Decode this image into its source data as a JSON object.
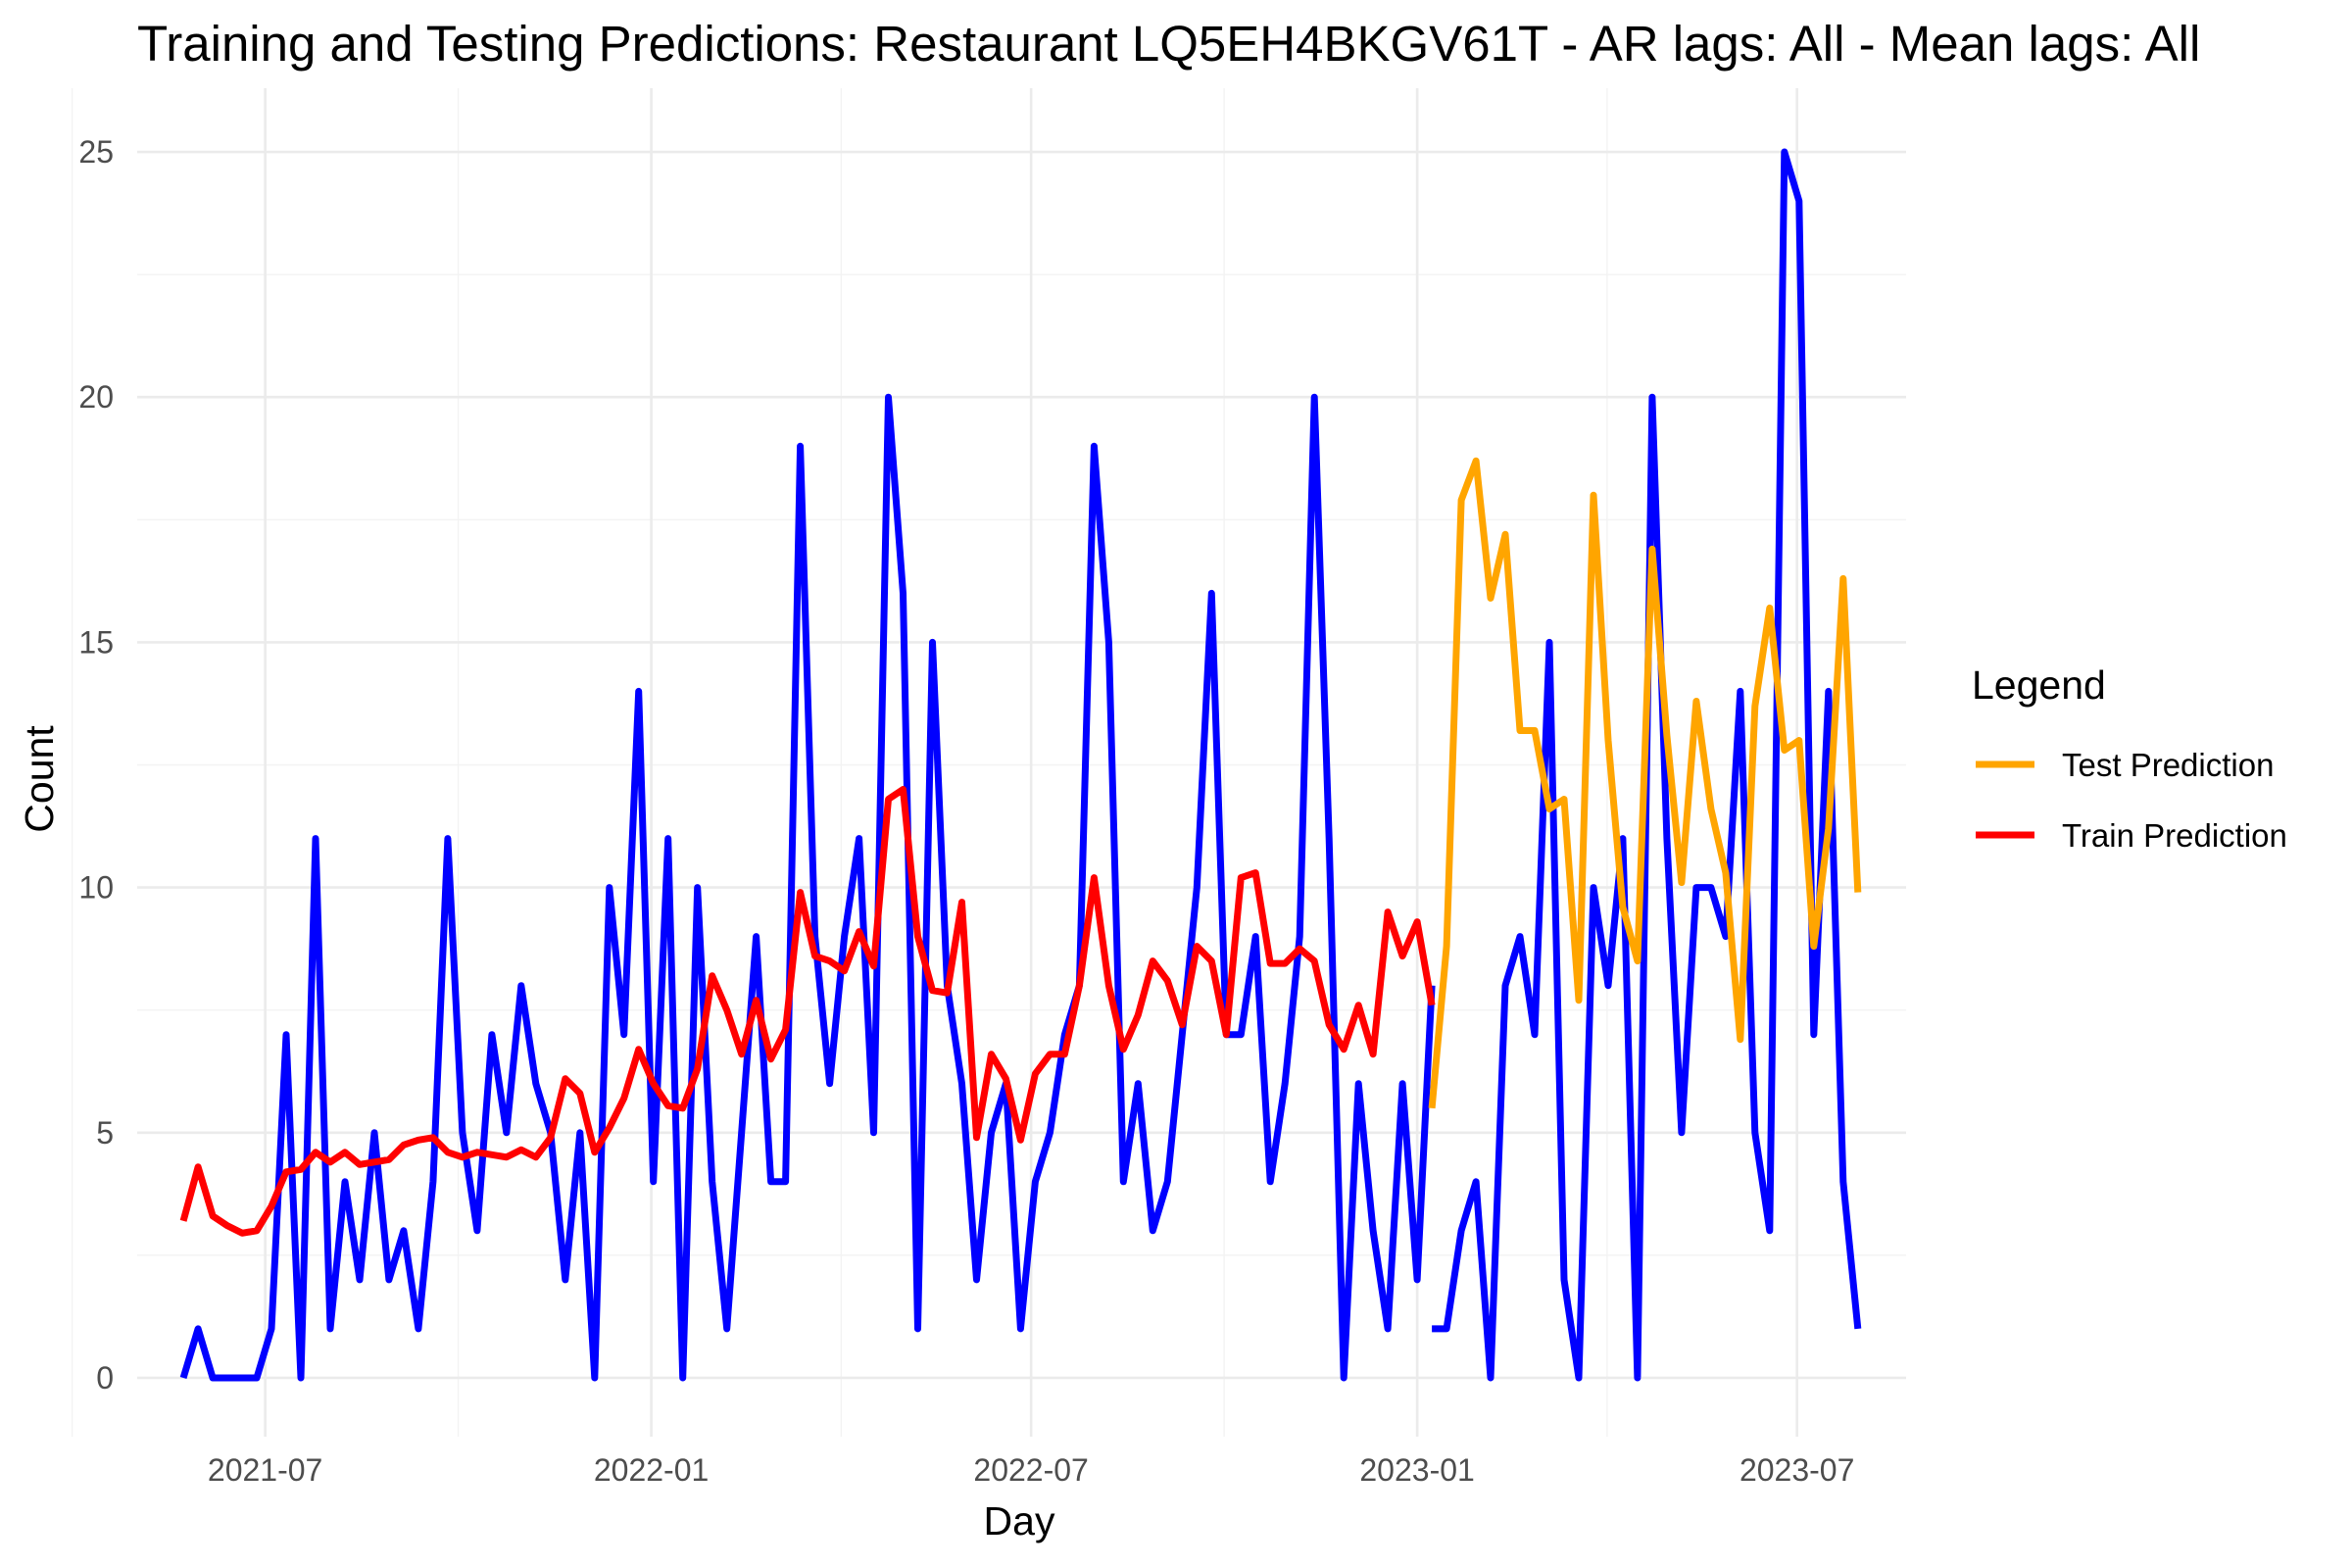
{
  "chart_data": {
    "type": "line",
    "title": "Training and Testing Predictions: Restaurant LQ5EH4BKGV61T - AR lags: All - Mean lags: All",
    "xlabel": "Day",
    "ylabel": "Count",
    "xlim": [
      "2021-05-01",
      "2023-08-22"
    ],
    "ylim": [
      -1.2,
      26.3
    ],
    "x_ticks": [
      "2021-07",
      "2022-01",
      "2022-07",
      "2023-01",
      "2023-07"
    ],
    "y_ticks": [
      0,
      5,
      10,
      15,
      20,
      25
    ],
    "grid": true,
    "legend": {
      "title": "Legend",
      "position": "right",
      "entries": [
        {
          "label": "Test Prediction",
          "color": "#FFA500"
        },
        {
          "label": "Train Prediction",
          "color": "#FF0000"
        }
      ]
    },
    "series": [
      {
        "name": "",
        "color": "#0000FF",
        "points": [
          [
            "2021-05-23",
            0
          ],
          [
            "2021-05-30",
            1
          ],
          [
            "2021-06-06",
            0
          ],
          [
            "2021-06-13",
            0
          ],
          [
            "2021-06-20",
            0
          ],
          [
            "2021-06-27",
            0
          ],
          [
            "2021-07-04",
            1
          ],
          [
            "2021-07-11",
            7
          ],
          [
            "2021-07-18",
            0
          ],
          [
            "2021-07-25",
            11
          ],
          [
            "2021-08-01",
            1
          ],
          [
            "2021-08-08",
            4
          ],
          [
            "2021-08-15",
            2
          ],
          [
            "2021-08-22",
            5
          ],
          [
            "2021-08-29",
            2
          ],
          [
            "2021-09-05",
            3
          ],
          [
            "2021-09-12",
            1
          ],
          [
            "2021-09-19",
            4
          ],
          [
            "2021-09-26",
            11
          ],
          [
            "2021-10-03",
            5
          ],
          [
            "2021-10-10",
            3
          ],
          [
            "2021-10-17",
            7
          ],
          [
            "2021-10-24",
            5
          ],
          [
            "2021-10-31",
            8
          ],
          [
            "2021-11-07",
            6
          ],
          [
            "2021-11-14",
            5
          ],
          [
            "2021-11-21",
            2
          ],
          [
            "2021-11-28",
            5
          ],
          [
            "2021-12-05",
            0
          ],
          [
            "2021-12-12",
            10
          ],
          [
            "2021-12-19",
            7
          ],
          [
            "2021-12-26",
            14
          ],
          [
            "2022-01-02",
            4
          ],
          [
            "2022-01-09",
            11
          ],
          [
            "2022-01-16",
            0
          ],
          [
            "2022-01-23",
            10
          ],
          [
            "2022-01-30",
            4
          ],
          [
            "2022-02-06",
            1
          ],
          [
            "2022-02-13",
            5
          ],
          [
            "2022-02-20",
            9
          ],
          [
            "2022-02-27",
            4
          ],
          [
            "2022-03-06",
            4
          ],
          [
            "2022-03-13",
            19
          ],
          [
            "2022-03-20",
            9
          ],
          [
            "2022-03-27",
            6
          ],
          [
            "2022-04-03",
            9
          ],
          [
            "2022-04-10",
            11
          ],
          [
            "2022-04-17",
            5
          ],
          [
            "2022-04-24",
            20
          ],
          [
            "2022-05-01",
            16
          ],
          [
            "2022-05-08",
            1
          ],
          [
            "2022-05-15",
            15
          ],
          [
            "2022-05-22",
            8
          ],
          [
            "2022-05-29",
            6
          ],
          [
            "2022-06-05",
            2
          ],
          [
            "2022-06-12",
            5
          ],
          [
            "2022-06-19",
            6
          ],
          [
            "2022-06-26",
            1
          ],
          [
            "2022-07-03",
            4
          ],
          [
            "2022-07-10",
            5
          ],
          [
            "2022-07-17",
            7
          ],
          [
            "2022-07-24",
            8
          ],
          [
            "2022-07-31",
            19
          ],
          [
            "2022-08-07",
            15
          ],
          [
            "2022-08-14",
            4
          ],
          [
            "2022-08-21",
            6
          ],
          [
            "2022-08-28",
            3
          ],
          [
            "2022-09-04",
            4
          ],
          [
            "2022-09-11",
            7
          ],
          [
            "2022-09-18",
            10
          ],
          [
            "2022-09-25",
            16
          ],
          [
            "2022-10-02",
            7
          ],
          [
            "2022-10-09",
            7
          ],
          [
            "2022-10-16",
            9
          ],
          [
            "2022-10-23",
            4
          ],
          [
            "2022-10-30",
            6
          ],
          [
            "2022-11-06",
            9
          ],
          [
            "2022-11-13",
            20
          ],
          [
            "2022-11-20",
            11
          ],
          [
            "2022-11-27",
            0
          ],
          [
            "2022-12-04",
            6
          ],
          [
            "2022-12-11",
            3
          ],
          [
            "2022-12-18",
            1
          ],
          [
            "2022-12-25",
            6
          ],
          [
            "2023-01-01",
            2
          ],
          [
            "2023-01-08",
            8
          ],
          null,
          [
            "2023-01-08",
            1
          ],
          [
            "2023-01-15",
            1
          ],
          [
            "2023-01-22",
            3
          ],
          [
            "2023-01-29",
            4
          ],
          [
            "2023-02-05",
            0
          ],
          [
            "2023-02-12",
            8
          ],
          [
            "2023-02-19",
            9
          ],
          [
            "2023-02-26",
            7
          ],
          [
            "2023-03-05",
            15
          ],
          [
            "2023-03-12",
            2
          ],
          [
            "2023-03-19",
            0
          ],
          [
            "2023-03-26",
            10
          ],
          [
            "2023-04-02",
            8
          ],
          [
            "2023-04-09",
            11
          ],
          [
            "2023-04-16",
            0
          ],
          [
            "2023-04-23",
            20
          ],
          [
            "2023-04-30",
            11
          ],
          [
            "2023-05-07",
            5
          ],
          [
            "2023-05-14",
            10
          ],
          [
            "2023-05-21",
            10
          ],
          [
            "2023-05-28",
            9
          ],
          [
            "2023-06-04",
            14
          ],
          [
            "2023-06-11",
            5
          ],
          [
            "2023-06-18",
            3
          ],
          [
            "2023-06-25",
            25
          ],
          [
            "2023-07-02",
            24
          ],
          [
            "2023-07-09",
            7
          ],
          [
            "2023-07-16",
            14
          ],
          [
            "2023-07-23",
            4
          ],
          [
            "2023-07-30",
            1
          ]
        ]
      },
      {
        "name": "Train Prediction",
        "color": "#FF0000",
        "points": [
          [
            "2021-05-23",
            3.2
          ],
          [
            "2021-05-30",
            4.3
          ],
          [
            "2021-06-06",
            3.3
          ],
          [
            "2021-06-13",
            3.1
          ],
          [
            "2021-06-20",
            2.95
          ],
          [
            "2021-06-27",
            3.0
          ],
          [
            "2021-07-04",
            3.5
          ],
          [
            "2021-07-11",
            4.2
          ],
          [
            "2021-07-18",
            4.25
          ],
          [
            "2021-07-25",
            4.6
          ],
          [
            "2021-08-01",
            4.4
          ],
          [
            "2021-08-08",
            4.6
          ],
          [
            "2021-08-15",
            4.35
          ],
          [
            "2021-08-22",
            4.4
          ],
          [
            "2021-08-29",
            4.45
          ],
          [
            "2021-09-05",
            4.75
          ],
          [
            "2021-09-12",
            4.85
          ],
          [
            "2021-09-19",
            4.9
          ],
          [
            "2021-09-26",
            4.6
          ],
          [
            "2021-10-03",
            4.5
          ],
          [
            "2021-10-10",
            4.6
          ],
          [
            "2021-10-17",
            4.55
          ],
          [
            "2021-10-24",
            4.5
          ],
          [
            "2021-10-31",
            4.65
          ],
          [
            "2021-11-07",
            4.5
          ],
          [
            "2021-11-14",
            4.9
          ],
          [
            "2021-11-21",
            6.1
          ],
          [
            "2021-11-28",
            5.8
          ],
          [
            "2021-12-05",
            4.6
          ],
          [
            "2021-12-12",
            5.1
          ],
          [
            "2021-12-19",
            5.7
          ],
          [
            "2021-12-26",
            6.7
          ],
          [
            "2022-01-02",
            6.0
          ],
          [
            "2022-01-09",
            5.55
          ],
          [
            "2022-01-16",
            5.5
          ],
          [
            "2022-01-23",
            6.3
          ],
          [
            "2022-01-30",
            8.2
          ],
          [
            "2022-02-06",
            7.5
          ],
          [
            "2022-02-13",
            6.6
          ],
          [
            "2022-02-20",
            7.7
          ],
          [
            "2022-02-27",
            6.5
          ],
          [
            "2022-03-06",
            7.1
          ],
          [
            "2022-03-13",
            9.9
          ],
          [
            "2022-03-20",
            8.6
          ],
          [
            "2022-03-27",
            8.5
          ],
          [
            "2022-04-03",
            8.3
          ],
          [
            "2022-04-10",
            9.1
          ],
          [
            "2022-04-17",
            8.4
          ],
          [
            "2022-04-24",
            11.8
          ],
          [
            "2022-05-01",
            12.0
          ],
          [
            "2022-05-08",
            9.0
          ],
          [
            "2022-05-15",
            7.9
          ],
          [
            "2022-05-22",
            7.85
          ],
          [
            "2022-05-29",
            9.7
          ],
          [
            "2022-06-05",
            4.9
          ],
          [
            "2022-06-12",
            6.6
          ],
          [
            "2022-06-19",
            6.1
          ],
          [
            "2022-06-26",
            4.85
          ],
          [
            "2022-07-03",
            6.2
          ],
          [
            "2022-07-10",
            6.6
          ],
          [
            "2022-07-17",
            6.6
          ],
          [
            "2022-07-24",
            8.0
          ],
          [
            "2022-07-31",
            10.2
          ],
          [
            "2022-08-07",
            8.0
          ],
          [
            "2022-08-14",
            6.7
          ],
          [
            "2022-08-21",
            7.4
          ],
          [
            "2022-08-28",
            8.5
          ],
          [
            "2022-09-04",
            8.1
          ],
          [
            "2022-09-11",
            7.2
          ],
          [
            "2022-09-18",
            8.8
          ],
          [
            "2022-09-25",
            8.5
          ],
          [
            "2022-10-02",
            7.0
          ],
          [
            "2022-10-09",
            10.2
          ],
          [
            "2022-10-16",
            10.3
          ],
          [
            "2022-10-23",
            8.45
          ],
          [
            "2022-10-30",
            8.45
          ],
          [
            "2022-11-06",
            8.75
          ],
          [
            "2022-11-13",
            8.5
          ],
          [
            "2022-11-20",
            7.2
          ],
          [
            "2022-11-27",
            6.7
          ],
          [
            "2022-12-04",
            7.6
          ],
          [
            "2022-12-11",
            6.6
          ],
          [
            "2022-12-18",
            9.5
          ],
          [
            "2022-12-25",
            8.6
          ],
          [
            "2023-01-01",
            9.3
          ],
          [
            "2023-01-08",
            7.6
          ]
        ]
      },
      {
        "name": "Test Prediction",
        "color": "#FFA500",
        "points": [
          [
            "2023-01-08",
            5.5
          ],
          [
            "2023-01-15",
            8.8
          ],
          [
            "2023-01-22",
            17.9
          ],
          [
            "2023-01-29",
            18.7
          ],
          [
            "2023-02-05",
            15.9
          ],
          [
            "2023-02-12",
            17.2
          ],
          [
            "2023-02-19",
            13.2
          ],
          [
            "2023-02-26",
            13.2
          ],
          [
            "2023-03-05",
            11.6
          ],
          [
            "2023-03-12",
            11.8
          ],
          [
            "2023-03-19",
            7.7
          ],
          [
            "2023-03-26",
            18.0
          ],
          [
            "2023-04-02",
            13.0
          ],
          [
            "2023-04-09",
            9.6
          ],
          [
            "2023-04-16",
            8.5
          ],
          [
            "2023-04-23",
            16.9
          ],
          [
            "2023-04-30",
            13.1
          ],
          [
            "2023-05-07",
            10.1
          ],
          [
            "2023-05-14",
            13.8
          ],
          [
            "2023-05-21",
            11.6
          ],
          [
            "2023-05-28",
            10.3
          ],
          [
            "2023-06-04",
            6.9
          ],
          [
            "2023-06-11",
            13.7
          ],
          [
            "2023-06-18",
            15.7
          ],
          [
            "2023-06-25",
            12.8
          ],
          [
            "2023-07-02",
            13.0
          ],
          [
            "2023-07-09",
            8.8
          ],
          [
            "2023-07-16",
            11.2
          ],
          [
            "2023-07-23",
            16.3
          ],
          [
            "2023-07-30",
            9.9
          ]
        ]
      }
    ]
  }
}
